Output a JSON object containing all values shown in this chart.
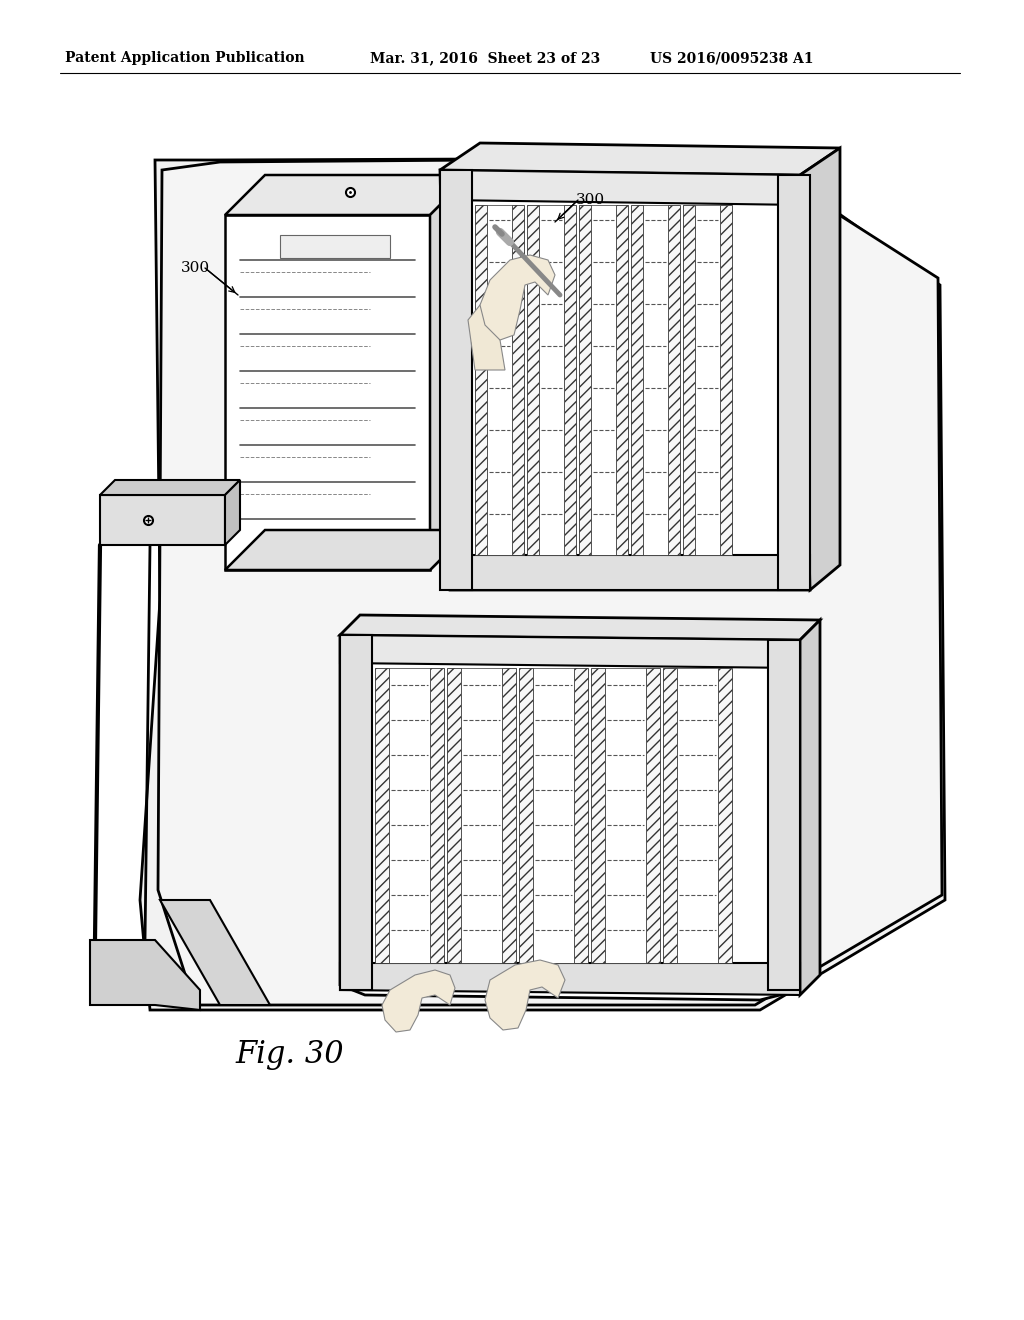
{
  "header_left": "Patent Application Publication",
  "header_mid": "Mar. 31, 2016  Sheet 23 of 23",
  "header_right": "US 2016/0095238 A1",
  "fig_label": "Fig. 30",
  "label_300_left": "300",
  "label_300_right": "300",
  "bg_color": "#ffffff",
  "line_color": "#000000",
  "header_fontsize": 10,
  "label_fontsize": 11,
  "fig_label_fontsize": 20
}
